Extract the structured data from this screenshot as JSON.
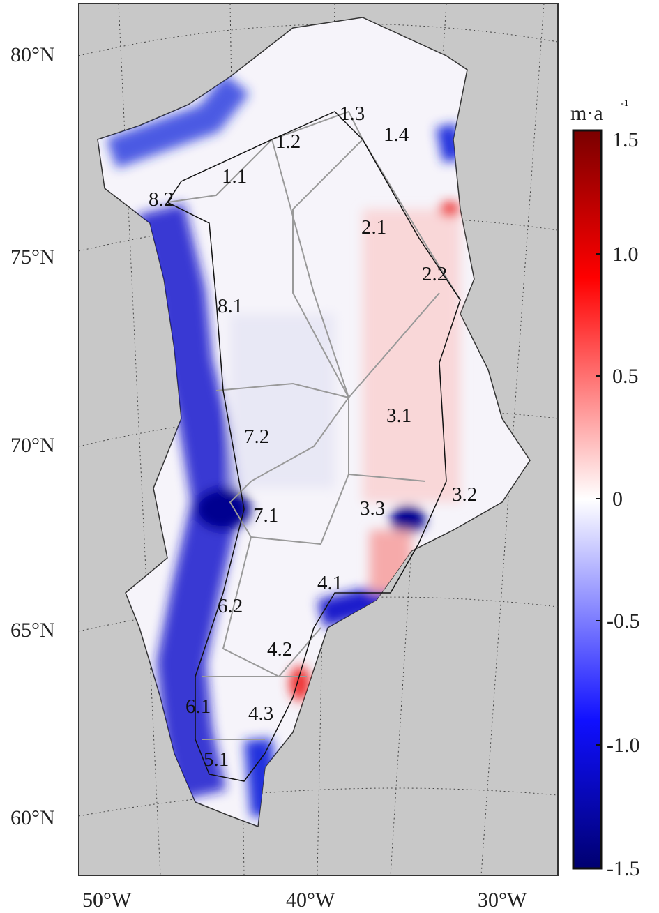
{
  "map": {
    "lat_labels": [
      "80°N",
      "75°N",
      "70°N",
      "65°N",
      "60°N"
    ],
    "lon_labels": [
      "50°W",
      "40°W",
      "30°W"
    ],
    "regions": [
      "1.1",
      "1.2",
      "1.3",
      "1.4",
      "2.1",
      "2.2",
      "3.1",
      "3.2",
      "3.3",
      "4.1",
      "4.2",
      "4.3",
      "5.1",
      "6.1",
      "6.2",
      "7.1",
      "7.2",
      "8.1",
      "8.2"
    ],
    "background_color": "#c8c8c8"
  },
  "colorbar": {
    "unit_base": "m·a",
    "unit_exp": "-1",
    "ticks": [
      "1.5",
      "1.0",
      "0.5",
      "0",
      "-0.5",
      "-1.0",
      "-1.5"
    ],
    "range": [
      -1.5,
      1.5
    ],
    "colors": {
      "max": "#7a0000",
      "pos": "#ff1a1a",
      "zero": "#ffffff",
      "neg": "#1a1aff",
      "min": "#000080"
    }
  }
}
